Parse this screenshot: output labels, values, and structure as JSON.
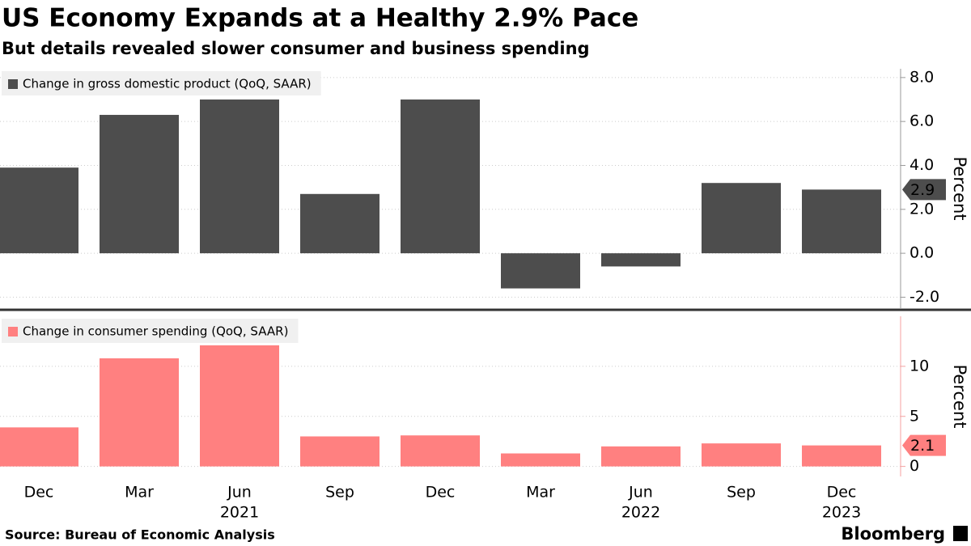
{
  "chart_data": {
    "type": "bar",
    "title": "US Economy Expands at a Healthy 2.9% Pace",
    "subtitle": "But details revealed slower consumer and business spending",
    "source": "Source: Bureau of Economic Analysis",
    "brand": "Bloomberg",
    "categories": [
      "Dec",
      "Mar",
      "Jun",
      "Sep",
      "Dec",
      "Mar",
      "Jun",
      "Sep",
      "Dec"
    ],
    "category_groups": [
      null,
      null,
      "2021",
      null,
      null,
      null,
      "2022",
      null,
      "2023"
    ],
    "grid": true,
    "panels": [
      {
        "y_label": "Percent",
        "series": [
          {
            "name": "Change in gross domestic product (QoQ, SAAR)",
            "color": "#4d4d4d",
            "values": [
              3.9,
              6.3,
              7.0,
              2.7,
              7.0,
              -1.6,
              -0.6,
              3.2,
              2.9
            ]
          }
        ],
        "ylim": [
          -2.5,
          8.4
        ],
        "yticks": [
          {
            "value": -2,
            "label": "-2.0"
          },
          {
            "value": 0,
            "label": "0.0"
          },
          {
            "value": 2,
            "label": "2.0"
          },
          {
            "value": 4,
            "label": "4.0"
          },
          {
            "value": 6,
            "label": "6.0"
          },
          {
            "value": 8,
            "label": "8.0"
          }
        ]
      },
      {
        "y_label": "Percent",
        "series": [
          {
            "name": "Change in consumer spending (QoQ, SAAR)",
            "color": "#ff8080",
            "values": [
              3.9,
              10.8,
              12.1,
              3.0,
              3.1,
              1.3,
              2.0,
              2.3,
              2.1
            ]
          }
        ],
        "ylim": [
          -1,
          15
        ],
        "yticks": [
          0,
          5,
          10
        ]
      }
    ]
  }
}
